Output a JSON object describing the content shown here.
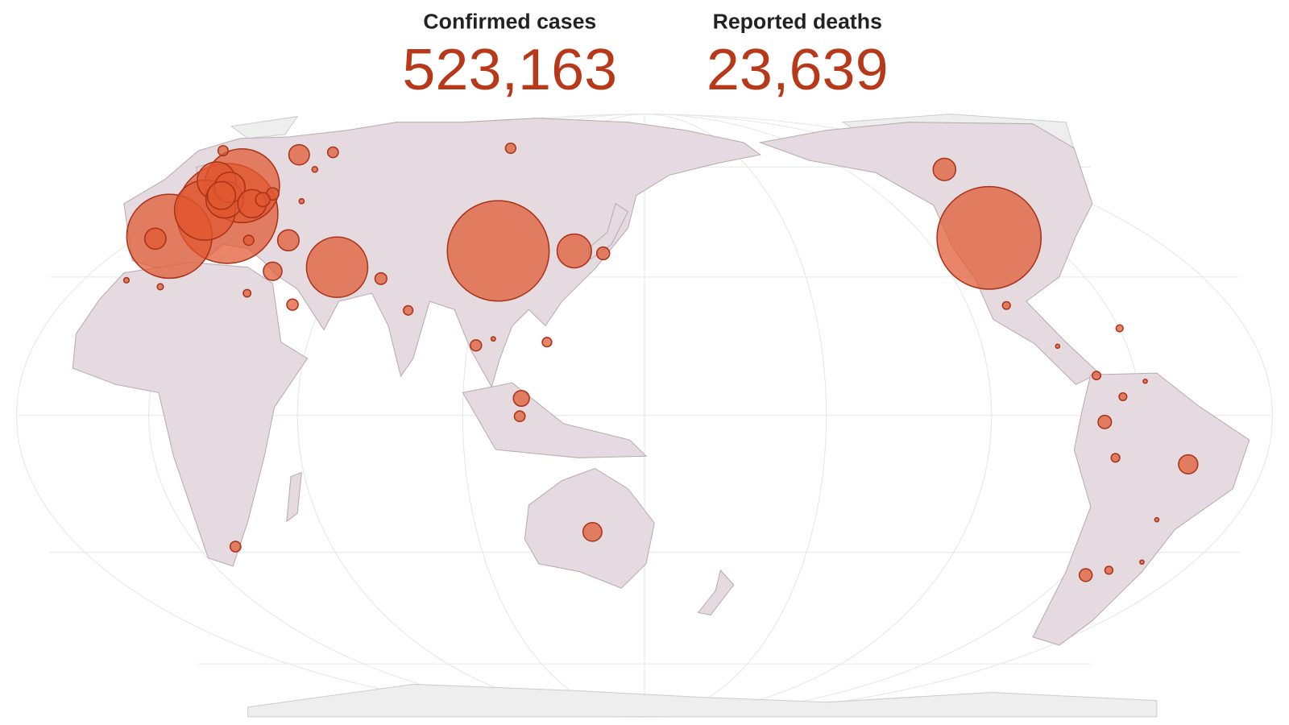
{
  "summary": {
    "cases_label": "Confirmed cases",
    "cases_value": "523,163",
    "deaths_label": "Reported deaths",
    "deaths_value": "23,639"
  },
  "bubbles": {
    "values": [
      85000,
      81300,
      80500,
      57000,
      43900,
      29400,
      29000,
      11600,
      11000,
      7400,
      6200,
      6400,
      3544,
      3300,
      3600,
      2700,
      9240,
      1300,
      4000,
      2900,
      2800,
      2000,
      1300,
      1400,
      900,
      840,
      1000,
      900,
      700,
      1100,
      1000,
      800,
      900,
      700,
      475,
      580,
      500,
      470,
      390,
      560,
      1200,
      1600,
      820,
      450,
      300,
      225,
      250,
      200,
      150,
      120,
      100,
      90,
      80
    ]
  }
}
